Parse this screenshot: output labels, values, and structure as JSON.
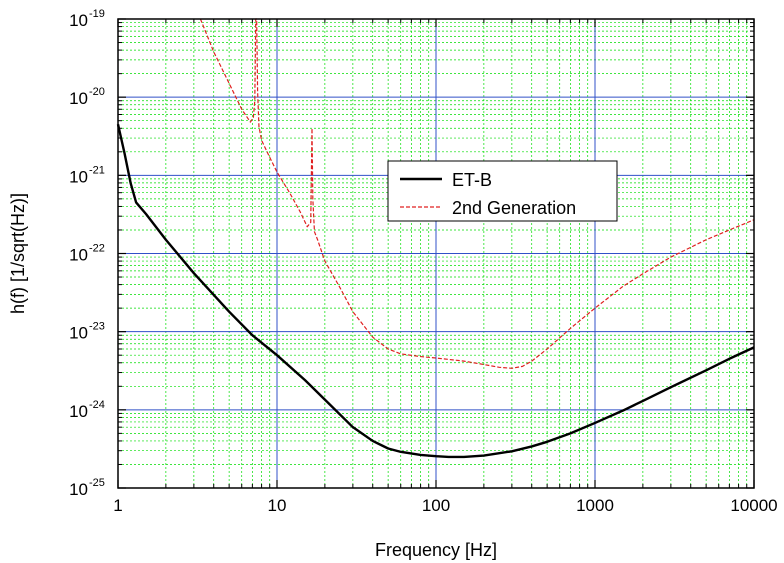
{
  "chart_data": {
    "type": "line",
    "xlabel": "Frequency [Hz]",
    "ylabel": "h(f) [1/sqrt(Hz)]",
    "xscale": "log",
    "yscale": "log",
    "xlim": [
      1,
      10000
    ],
    "ylim": [
      1e-25,
      1e-19
    ],
    "x_ticks": [
      {
        "value": 1,
        "label": "1"
      },
      {
        "value": 10,
        "label": "10"
      },
      {
        "value": 100,
        "label": "100"
      },
      {
        "value": 1000,
        "label": "1000"
      },
      {
        "value": 10000,
        "label": "10000"
      }
    ],
    "y_ticks": [
      {
        "value": 1e-25,
        "base": "10",
        "exp": "-25"
      },
      {
        "value": 1e-24,
        "base": "10",
        "exp": "-24"
      },
      {
        "value": 1e-23,
        "base": "10",
        "exp": "-23"
      },
      {
        "value": 1e-22,
        "base": "10",
        "exp": "-22"
      },
      {
        "value": 1e-21,
        "base": "10",
        "exp": "-21"
      },
      {
        "value": 1e-20,
        "base": "10",
        "exp": "-20"
      },
      {
        "value": 1e-19,
        "base": "10",
        "exp": "-19"
      }
    ],
    "grid": {
      "major": true,
      "minor": true,
      "major_color": "#3050c8",
      "minor_color": "#00dd00"
    },
    "legend_position": "center-right",
    "series": [
      {
        "name": "ET-B",
        "color": "#000000",
        "style": "solid",
        "x": [
          1,
          1.1,
          1.2,
          1.3,
          1.5,
          2,
          3,
          5,
          7,
          10,
          15,
          20,
          30,
          40,
          50,
          60,
          80,
          100,
          120,
          150,
          200,
          300,
          400,
          500,
          700,
          1000,
          1500,
          2000,
          3000,
          5000,
          7000,
          10000
        ],
        "y": [
          4.5e-21,
          1.9e-21,
          8e-22,
          4.5e-22,
          3.2e-22,
          1.5e-22,
          5.6e-23,
          1.8e-23,
          9e-24,
          5e-24,
          2.4e-24,
          1.35e-24,
          6e-25,
          4e-25,
          3.2e-25,
          2.9e-25,
          2.65e-25,
          2.55e-25,
          2.5e-25,
          2.5e-25,
          2.6e-25,
          2.95e-25,
          3.4e-25,
          3.9e-25,
          5e-25,
          6.8e-25,
          9.8e-25,
          1.3e-24,
          1.95e-24,
          3.2e-24,
          4.5e-24,
          6.3e-24
        ]
      },
      {
        "name": "2nd Generation",
        "color": "#e02020",
        "style": "dashed",
        "x": [
          3.3,
          4,
          5,
          6,
          6.8,
          7.1,
          7.25,
          7.35,
          7.45,
          7.55,
          7.7,
          8,
          9,
          10,
          12,
          14,
          15.5,
          16.3,
          16.6,
          16.8,
          17.2,
          18,
          20,
          25,
          30,
          40,
          50,
          60,
          80,
          100,
          150,
          200,
          250,
          300,
          350,
          400,
          500,
          700,
          1000,
          1500,
          2000,
          3000,
          5000,
          7000,
          10000
        ],
        "y": [
          1e-19,
          3.8e-20,
          1.5e-20,
          7e-21,
          4.8e-21,
          5.5e-21,
          9e-21,
          1e-19,
          1e-19,
          1.2e-20,
          4.2e-21,
          2.8e-21,
          1.7e-21,
          1.1e-21,
          6e-22,
          3.4e-22,
          2.2e-22,
          2.5e-22,
          4e-21,
          5e-22,
          1.9e-22,
          1.5e-22,
          8e-23,
          3.6e-23,
          1.8e-23,
          8.5e-24,
          6e-24,
          5.2e-24,
          4.8e-24,
          4.6e-24,
          4.2e-24,
          3.8e-24,
          3.5e-24,
          3.4e-24,
          3.6e-24,
          4.2e-24,
          6e-24,
          1.1e-23,
          2e-23,
          3.8e-23,
          5.5e-23,
          9e-23,
          1.5e-22,
          2e-22,
          2.7e-22
        ]
      }
    ]
  }
}
